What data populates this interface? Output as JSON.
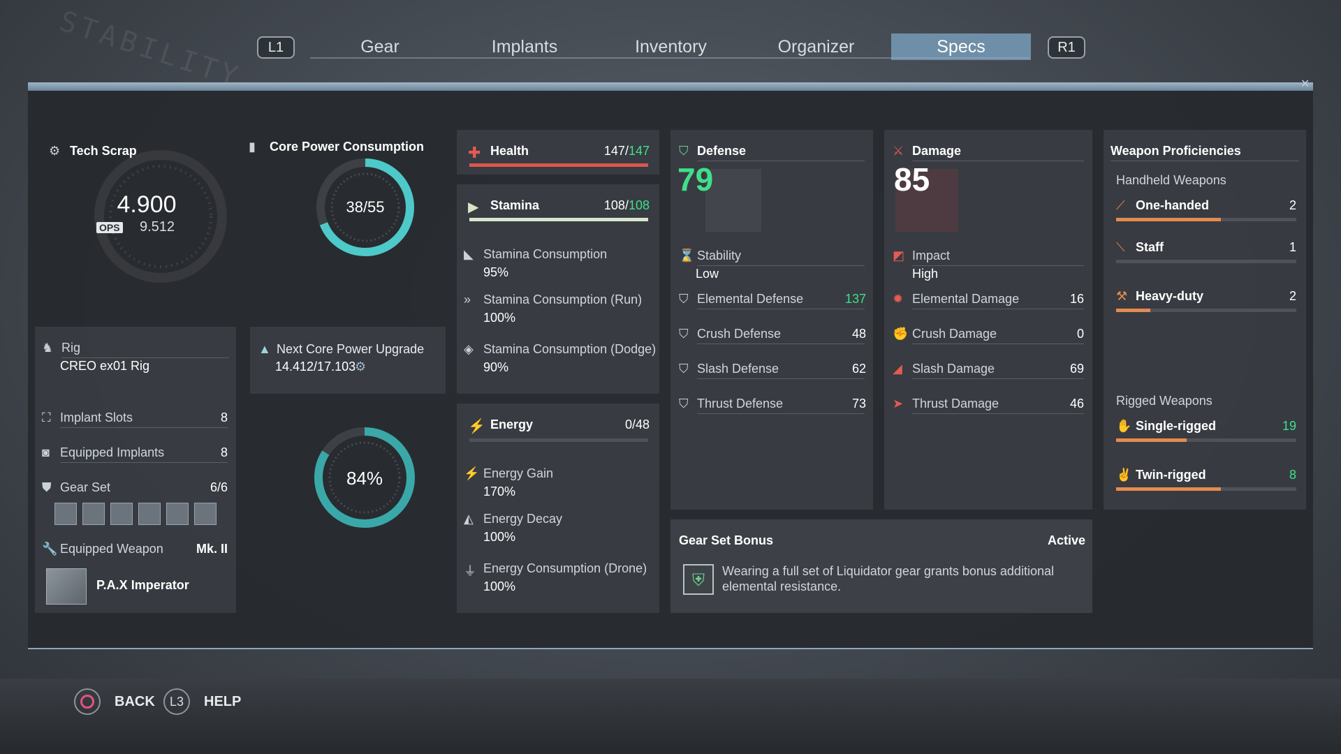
{
  "nav": {
    "left_button": "L1",
    "right_button": "R1",
    "tabs": [
      "Gear",
      "Implants",
      "Inventory",
      "Organizer",
      "Specs"
    ],
    "active_tab": "Specs"
  },
  "tech_scrap": {
    "title": "Tech Scrap",
    "value": "4.900",
    "ops_label": "OPS",
    "ops_value": "9.512"
  },
  "rig_panel": {
    "rig_label": "Rig",
    "rig_value": "CREO ex01 Rig",
    "implant_slots_label": "Implant Slots",
    "implant_slots_value": "8",
    "equipped_implants_label": "Equipped Implants",
    "equipped_implants_value": "8",
    "gear_set_label": "Gear Set",
    "gear_set_value": "6/6",
    "equipped_weapon_label": "Equipped Weapon",
    "equipped_weapon_mark": "Mk. II",
    "weapon_name": "P.A.X Imperator"
  },
  "core_power": {
    "title": "Core Power Consumption",
    "text": "38/55",
    "fraction": 0.69,
    "next_upgrade_label": "Next Core Power Upgrade",
    "next_upgrade_value": "14.412/17.103",
    "percent_text": "84%",
    "percent_fraction": 0.84
  },
  "health": {
    "label": "Health",
    "current": "147",
    "max": "147",
    "fraction": 1.0
  },
  "stamina": {
    "label": "Stamina",
    "current": "108",
    "max": "108",
    "fraction": 1.0,
    "consumption_label": "Stamina Consumption",
    "consumption_value": "95%",
    "run_label": "Stamina Consumption (Run)",
    "run_value": "100%",
    "dodge_label": "Stamina Consumption (Dodge)",
    "dodge_value": "90%"
  },
  "energy": {
    "label": "Energy",
    "value": "0/48",
    "fraction": 0.0,
    "gain_label": "Energy Gain",
    "gain_value": "170%",
    "decay_label": "Energy Decay",
    "decay_value": "100%",
    "drone_label": "Energy Consumption (Drone)",
    "drone_value": "100%"
  },
  "defense": {
    "title": "Defense",
    "value": "79",
    "stability_label": "Stability",
    "stability_value": "Low",
    "elemental_label": "Elemental Defense",
    "elemental_value": "137",
    "crush_label": "Crush Defense",
    "crush_value": "48",
    "slash_label": "Slash Defense",
    "slash_value": "62",
    "thrust_label": "Thrust Defense",
    "thrust_value": "73"
  },
  "damage": {
    "title": "Damage",
    "value": "85",
    "impact_label": "Impact",
    "impact_value": "High",
    "elemental_label": "Elemental Damage",
    "elemental_value": "16",
    "crush_label": "Crush Damage",
    "crush_value": "0",
    "slash_label": "Slash Damage",
    "slash_value": "69",
    "thrust_label": "Thrust Damage",
    "thrust_value": "46"
  },
  "gear_set_bonus": {
    "title": "Gear Set Bonus",
    "status": "Active",
    "description_line1": "Wearing a full set of Liquidator gear grants bonus additional",
    "description_line2": "elemental resistance."
  },
  "proficiencies": {
    "title": "Weapon Proficiencies",
    "handheld_title": "Handheld Weapons",
    "rigged_title": "Rigged Weapons",
    "items": [
      {
        "label": "One-handed",
        "level": "2",
        "progress": 0.58,
        "highlight": false
      },
      {
        "label": "Staff",
        "level": "1",
        "progress": 0.0,
        "highlight": false
      },
      {
        "label": "Heavy-duty",
        "level": "2",
        "progress": 0.19,
        "highlight": false
      },
      {
        "label": "Single-rigged",
        "level": "19",
        "progress": 0.39,
        "highlight": true
      },
      {
        "label": "Twin-rigged",
        "level": "8",
        "progress": 0.58,
        "highlight": true
      }
    ]
  },
  "footer": {
    "back_label": "BACK",
    "help_button": "L3",
    "help_label": "HELP"
  },
  "colors": {
    "accent": "#4ec9c9",
    "health_bar": "#d9584f",
    "stamina_bar": "#d7e6cf",
    "green": "#3fe08a",
    "proficiency_bar": "#e58b51",
    "active_tab": "#6f8fa8"
  }
}
